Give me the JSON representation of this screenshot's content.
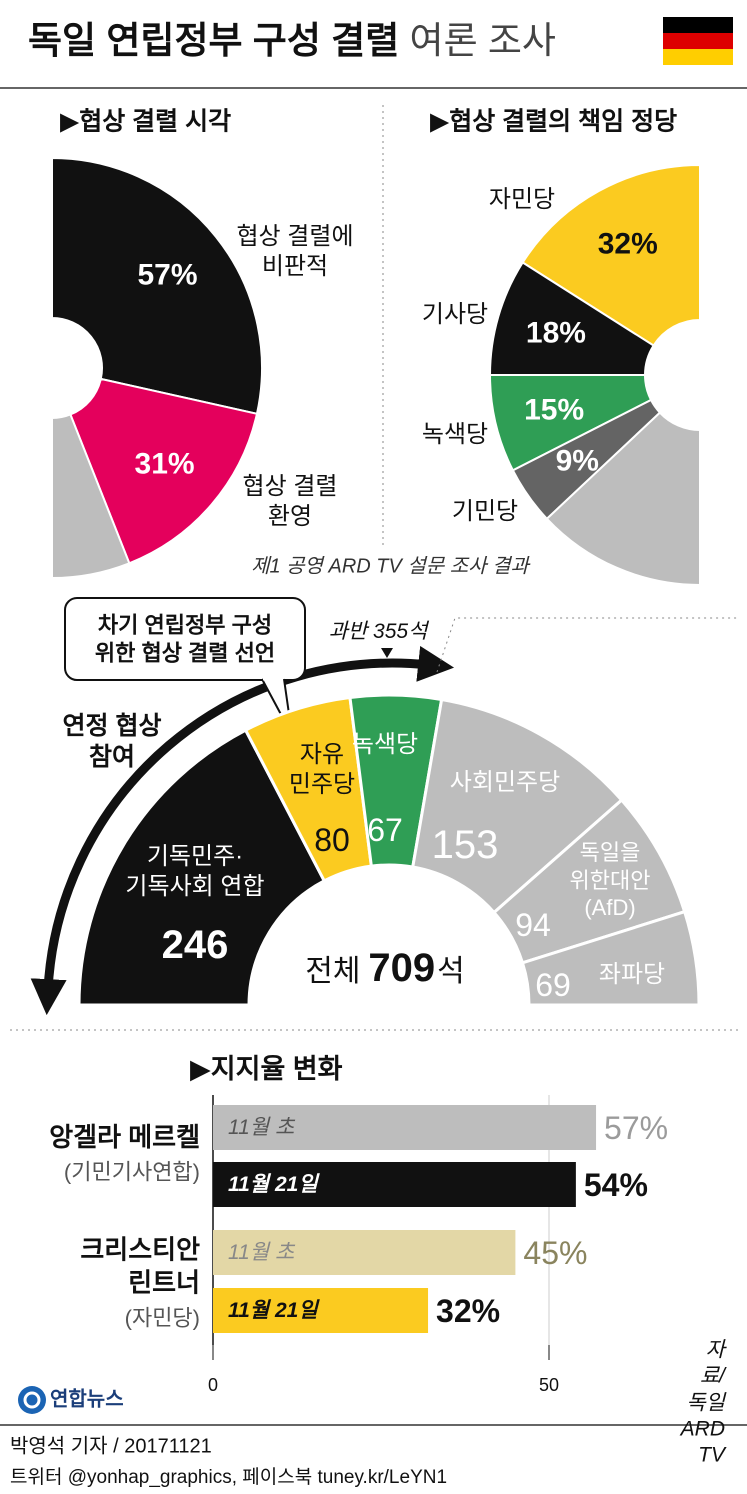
{
  "title": "독일 연립정부 구성 결렬",
  "subtitle": "여론 조사",
  "chart_data": [
    {
      "type": "half-donut",
      "side": "right",
      "title": "▶협상 결렬 시각",
      "categories": [
        "협상 결렬에\n비판적",
        "협상 결렬\n환영",
        null
      ],
      "values": [
        57,
        31,
        12
      ],
      "value_labels": [
        "57%",
        "31%",
        null
      ],
      "colors": [
        "#111111",
        "#e4005c",
        "#bdbdbd"
      ],
      "label_colors": [
        "#ffffff",
        "#ffffff",
        null
      ]
    },
    {
      "type": "half-donut",
      "side": "left",
      "title": "▶협상 결렬의 책임 정당",
      "categories": [
        "자민당",
        "기사당",
        "녹색당",
        "기민당",
        null
      ],
      "values": [
        32,
        18,
        15,
        9,
        26
      ],
      "value_labels": [
        "32%",
        "18%",
        "15%",
        "9%",
        null
      ],
      "colors": [
        "#fbcb20",
        "#111111",
        "#2f9e55",
        "#646464",
        "#bdbdbd"
      ],
      "label_colors": [
        "#111111",
        "#ffffff",
        "#ffffff",
        "#ffffff",
        null
      ],
      "note": "제1 공영 ARD TV 설문 조사 결과"
    },
    {
      "type": "parliament",
      "categories": [
        "기독민주·\n기독사회 연합",
        "자유\n민주당",
        "녹색당",
        "사회민주당",
        "독일을\n위한대안\n(AfD)",
        "좌파당"
      ],
      "values": [
        246,
        80,
        67,
        153,
        94,
        69
      ],
      "colors": [
        "#111111",
        "#fbcb20",
        "#2f9e55",
        "#bdbdbd",
        "#bdbdbd",
        "#bdbdbd"
      ],
      "label_colors": [
        "#ffffff",
        "#111111",
        "#ffffff",
        "#ffffff",
        "#ffffff",
        "#ffffff"
      ],
      "total_prefix": "전체",
      "total": 709,
      "total_suffix": "석",
      "majority_label": "과반 355석",
      "callout": "차기 연립정부 구성\n위한 협상 결렬 선언",
      "arrow_label": "연정 협상\n참여"
    },
    {
      "type": "hbar",
      "title": "▶지지율 변화",
      "categories": [
        "앙겔라 메르켈",
        "크리스티안\n린트너"
      ],
      "category_notes": [
        "(기민기사연합)",
        "(자민당)"
      ],
      "series": [
        {
          "name": "11월 초",
          "colors": [
            "#bdbdbd",
            "#e3d7a6"
          ],
          "values": [
            57,
            45
          ],
          "value_labels": [
            "57%",
            "45%"
          ],
          "label_colors": [
            "#9b9b9b",
            "#8a845e"
          ]
        },
        {
          "name": "11월 21일",
          "colors": [
            "#111111",
            "#fbcb20"
          ],
          "values": [
            54,
            32
          ],
          "value_labels": [
            "54%",
            "32%"
          ],
          "label_colors": [
            "#111111",
            "#111111"
          ]
        }
      ],
      "xlim": [
        0,
        65
      ],
      "xticks": [
        0,
        50
      ]
    }
  ],
  "logo": "연합뉴스",
  "source": "자료/ 독일 ARD TV",
  "byline": "박영석 기자 / 20171121",
  "social": "트위터 @yonhap_graphics, 페이스북 tuney.kr/LeYN1"
}
